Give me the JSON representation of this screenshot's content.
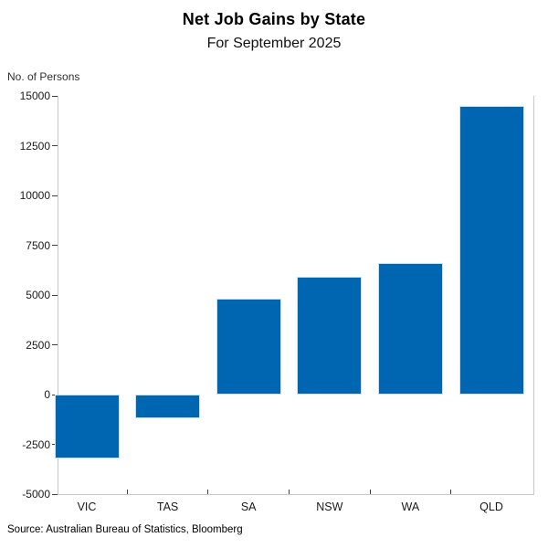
{
  "header": {
    "title": "Net Job Gains by State",
    "subtitle": "For September 2025"
  },
  "axis_unit_label": "No. of Persons",
  "source_text": "Source: Australian Bureau of Statistics, Bloomberg",
  "colors": {
    "bar": "#0066B2",
    "bar_edge": "#CFE0EF",
    "spine": "#C9C9C9",
    "tick_mark": "#404040",
    "label_text": "#1A1A1A"
  },
  "chart_data": {
    "type": "bar",
    "categories": [
      "VIC",
      "TAS",
      "SA",
      "NSW",
      "WA",
      "QLD"
    ],
    "values": [
      -3200,
      -1200,
      4800,
      5900,
      6600,
      14500
    ],
    "title": "Net Job Gains by State",
    "subtitle": "For September 2025",
    "xlabel": "",
    "ylabel": "No. of Persons",
    "ylim": [
      -5000,
      15000
    ],
    "yticks": [
      -5000,
      -2500,
      0,
      2500,
      5000,
      7500,
      10000,
      12500,
      15000
    ],
    "xticks_between_categories": true,
    "grid": false,
    "legend": "none",
    "bar_color": "#0066B2",
    "source": "Source: Australian Bureau of Statistics, Bloomberg"
  }
}
